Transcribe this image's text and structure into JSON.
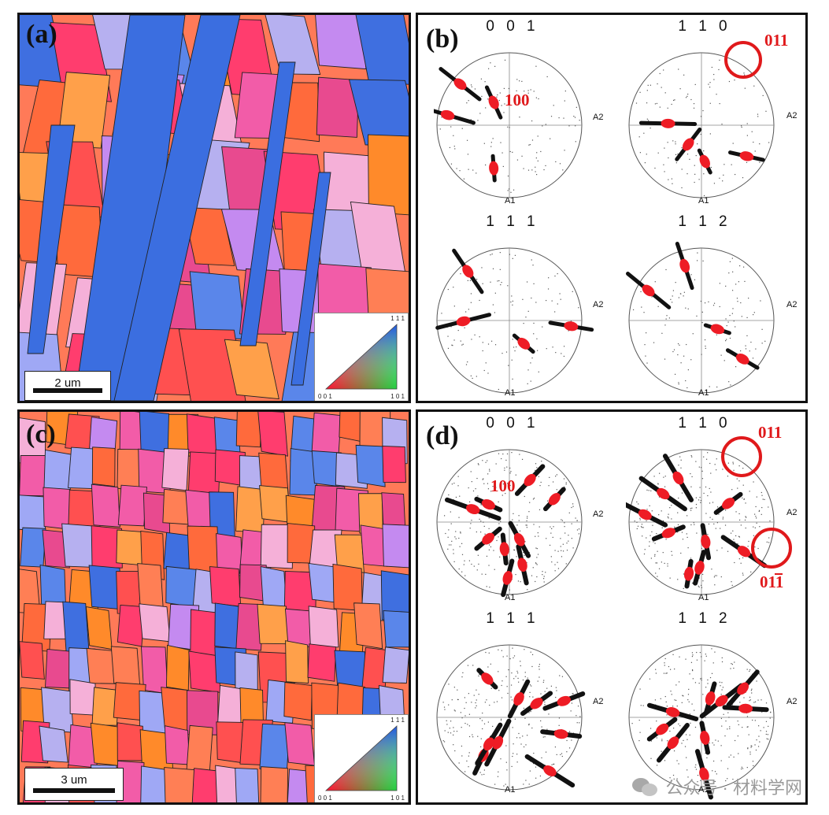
{
  "panels": {
    "a": {
      "label": "(a)",
      "scale_label": "2 um"
    },
    "b": {
      "label": "(b)"
    },
    "c": {
      "label": "(c)",
      "scale_label": "3 um"
    },
    "d": {
      "label": "(d)"
    }
  },
  "legend_triangle": {
    "top": "1 1 1",
    "left": "0 0 1",
    "right": "1 0 1"
  },
  "pole_figures": {
    "titles": [
      "0 0 1",
      "1 1 0",
      "1 1 1",
      "1 1 2"
    ],
    "axis_right": "A2",
    "axis_bottom": "A1"
  },
  "annotations": {
    "b_100": "100",
    "b_011": "011",
    "d_100": "100",
    "d_011": "011",
    "d_011bar": "011"
  },
  "watermark": {
    "text": "公众号 · 材料学网"
  },
  "colors": {
    "highlight_red": "#e0191b",
    "frame": "#111111"
  }
}
